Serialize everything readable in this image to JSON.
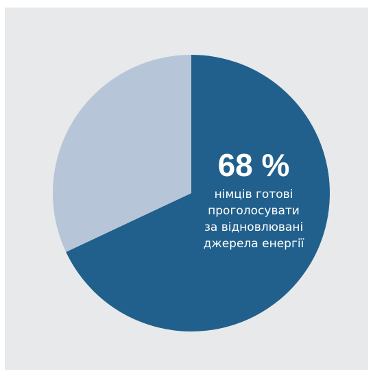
{
  "colors": {
    "background": "#e8e9ea",
    "primary_slice": "#21608c",
    "secondary_slice": "#b6c6d8",
    "text": "#ffffff"
  },
  "chart_data": {
    "type": "pie",
    "title": "",
    "slices": [
      {
        "label": "",
        "value": 68,
        "color": "#21608c"
      },
      {
        "label": "",
        "value": 32,
        "color": "#b6c6d8"
      }
    ],
    "annotation": {
      "value_label": "68 %",
      "caption_lines": [
        "німців готові",
        "проголосувати",
        "за відновлювані",
        "джерела енергії"
      ]
    },
    "legend": "none",
    "grid": false
  }
}
